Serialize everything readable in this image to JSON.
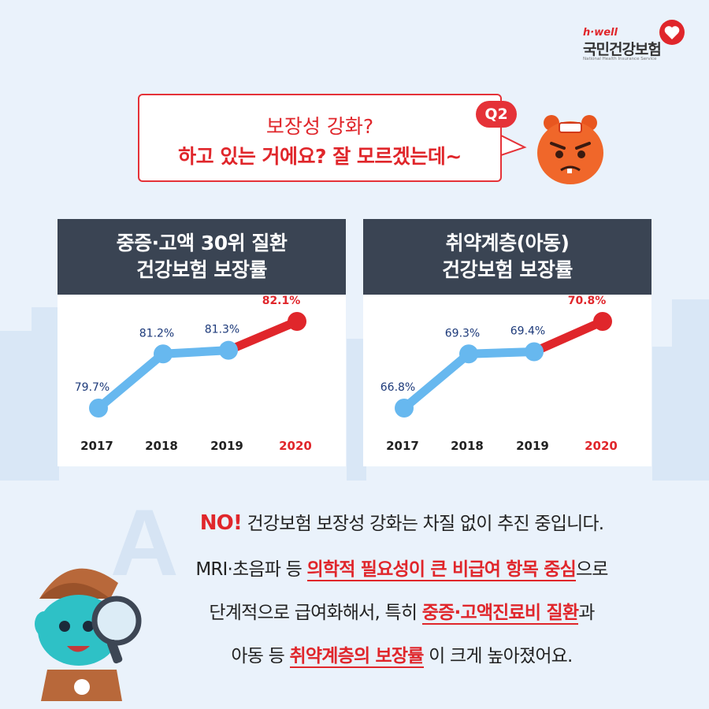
{
  "logo": {
    "brand": "h·well",
    "name": "국민건강보험",
    "sub": "National Health Insurance Service"
  },
  "question": {
    "badge": "Q2",
    "line1": "보장성 강화?",
    "line2": "하고 있는 거에요? 잘 모르겠는데~"
  },
  "cards": [
    {
      "title1": "중증·고액 30위 질환",
      "title2": "건강보험 보장률"
    },
    {
      "title1": "취약계층(아동)",
      "title2": "건강보험 보장률"
    }
  ],
  "chart_data": [
    {
      "type": "line",
      "title": "중증·고액 30위 질환 건강보험 보장률",
      "x": [
        "2017",
        "2018",
        "2019",
        "2020"
      ],
      "values": [
        79.7,
        81.2,
        81.3,
        82.1
      ],
      "labels": [
        "79.7%",
        "81.2%",
        "81.3%",
        "82.1%"
      ],
      "colors": {
        "past": "#67b8ef",
        "latest": "#e0262b",
        "label": "#1d3a7a"
      }
    },
    {
      "type": "line",
      "title": "취약계층(아동) 건강보험 보장률",
      "x": [
        "2017",
        "2018",
        "2019",
        "2020"
      ],
      "values": [
        66.8,
        69.3,
        69.4,
        70.8
      ],
      "labels": [
        "66.8%",
        "69.3%",
        "69.4%",
        "70.8%"
      ],
      "colors": {
        "past": "#67b8ef",
        "latest": "#e0262b",
        "label": "#1d3a7a"
      }
    }
  ],
  "answer": {
    "letter": "A",
    "no": "NO!",
    "line1_rest": " 건강보험 보장성 강화는 차질 없이 추진 중입니다.",
    "line2_pre": "MRI·초음파 등 ",
    "line2_hl": "의학적 필요성이 큰 비급여 항목 중심",
    "line2_post": "으로",
    "line3_pre": "단계적으로 급여화해서, 특히 ",
    "line3_hl": "중증·고액진료비 질환",
    "line3_post": "과",
    "line4_pre": "아동 등 ",
    "line4_hl": "취약계층의 보장률",
    "line4_post": " 이 크게 높아졌어요."
  },
  "colors": {
    "background": "#eaf2fb",
    "accent": "#e0262b",
    "card_header": "#3a4453",
    "line": "#67b8ef"
  }
}
